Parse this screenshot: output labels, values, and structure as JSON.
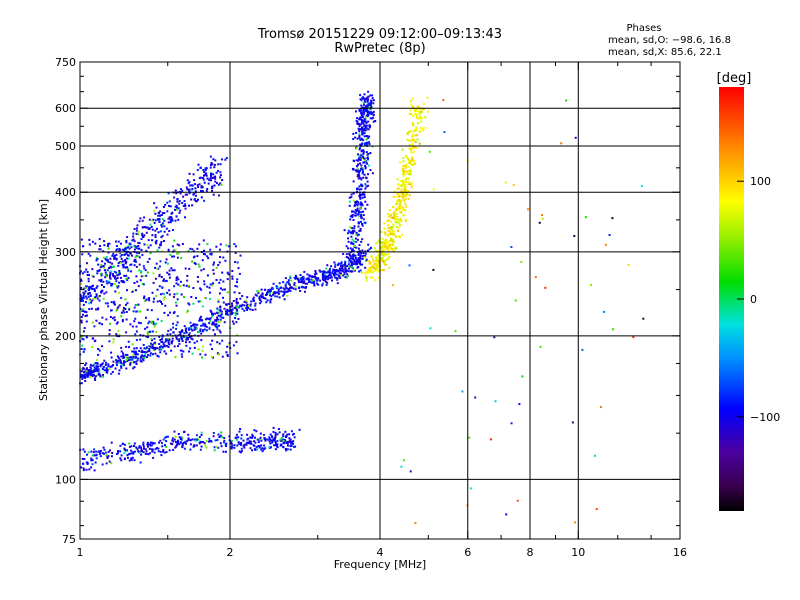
{
  "chart_data": {
    "type": "scatter",
    "title": "Tromsø 20151229 09:12:00–09:13:43",
    "subtitle": "RwPretec (8p)",
    "xlabel": "Frequency [MHz]",
    "ylabel": "Stationary phase Virtual Height [km]",
    "x_scale": "log",
    "y_scale": "log",
    "xlim": [
      1,
      16
    ],
    "ylim": [
      75,
      750
    ],
    "x_ticks": [
      1,
      2,
      4,
      6,
      8,
      10,
      16
    ],
    "y_ticks": [
      75,
      100,
      200,
      300,
      400,
      500,
      600,
      750
    ],
    "x_grid": [
      2,
      4,
      6,
      8,
      10
    ],
    "y_grid": [
      100,
      200,
      300,
      400,
      500,
      600
    ],
    "phases": {
      "heading": "Phases",
      "o_line": "mean, sd,O: −98.6, 16.8",
      "x_line": "mean, sd,X:  85.6, 22.1",
      "o_mean": -98.6,
      "o_sd": 16.8,
      "x_mean": 85.6,
      "x_sd": 22.1
    },
    "colorbar": {
      "label": "[deg]",
      "range": [
        -180,
        180
      ],
      "ticks": [
        100,
        0,
        -100
      ],
      "tick_labels": [
        "100",
        "0",
        "−100"
      ],
      "colormap": "rainbow (black-purple-blue-cyan-green-yellow-red)"
    },
    "series": [
      {
        "name": "O",
        "mean_phase": -98.6,
        "sd": 16.8,
        "traces": [
          {
            "type": "F2 O-mode lower",
            "x": [
              1.0,
              1.1,
              1.3,
              1.6,
              2.0,
              2.4,
              2.8,
              3.2,
              3.5,
              3.7
            ],
            "y": [
              165,
              170,
              180,
              200,
              225,
              245,
              260,
              270,
              280,
              300
            ]
          },
          {
            "type": "F2 O-mode cusp",
            "x": [
              3.5,
              3.6,
              3.65,
              3.7,
              3.72,
              3.75,
              3.78
            ],
            "y": [
              300,
              360,
              420,
              480,
              540,
              590,
              630
            ]
          },
          {
            "type": "F1 region",
            "x": [
              1.0,
              1.15,
              1.3,
              1.5,
              1.7,
              1.9
            ],
            "y": [
              240,
              270,
              310,
              360,
              410,
              450
            ]
          },
          {
            "type": "E region",
            "x": [
              1.0,
              1.3,
              1.6,
              2.0,
              2.4,
              2.7
            ],
            "y": [
              110,
              115,
              120,
              120,
              120,
              120
            ]
          }
        ]
      },
      {
        "name": "X",
        "mean_phase": 85.6,
        "sd": 22.1,
        "traces": [
          {
            "type": "F2 X-mode",
            "x": [
              3.8,
              4.0,
              4.2,
              4.4,
              4.6,
              4.8
            ],
            "y": [
              270,
              290,
              320,
              380,
              470,
              620
            ]
          }
        ]
      }
    ]
  }
}
